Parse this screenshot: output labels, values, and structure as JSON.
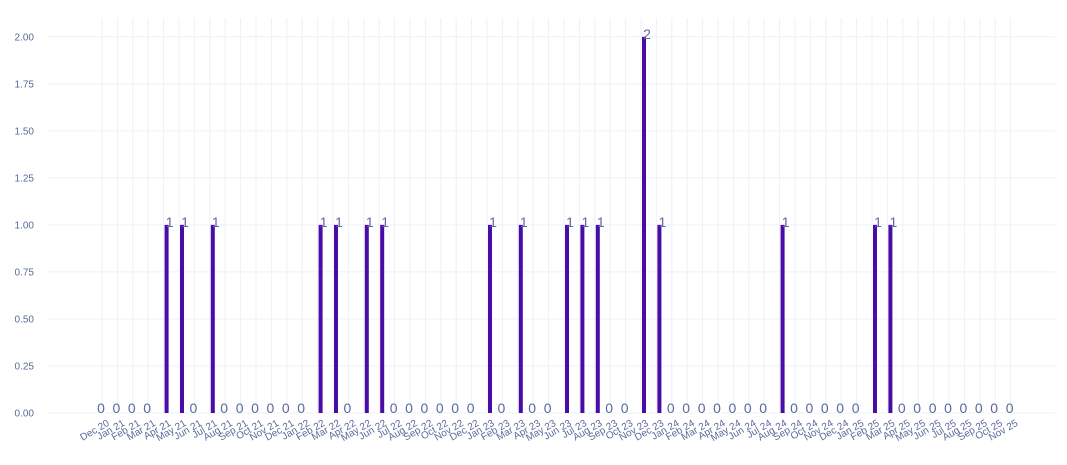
{
  "chart_data": {
    "type": "bar",
    "categories": [
      "Dec 20",
      "Jan 21",
      "Feb 21",
      "Mar 21",
      "Apr 21",
      "May 21",
      "Jun 21",
      "Jul 21",
      "Aug 21",
      "Sep 21",
      "Oct 21",
      "Nov 21",
      "Dec 21",
      "Jan 22",
      "Feb 22",
      "Mar 22",
      "Apr 22",
      "May 22",
      "Jun 22",
      "Jul 22",
      "Aug 22",
      "Sep 22",
      "Oct 22",
      "Nov 22",
      "Dec 22",
      "Jan 23",
      "Feb 23",
      "Mar 23",
      "Apr 23",
      "May 23",
      "Jun 23",
      "Jul 23",
      "Aug 23",
      "Sep 23",
      "Oct 23",
      "Nov 23",
      "Dec 23",
      "Jan 24",
      "Feb 24",
      "Mar 24",
      "Apr 24",
      "May 24",
      "Jun 24",
      "Jul 24",
      "Aug 24",
      "Sep 24",
      "Oct 24",
      "Nov 24",
      "Dec 24",
      "Jan 25",
      "Feb 25",
      "Mar 25",
      "Apr 25",
      "May 25",
      "Jun 25",
      "Jul 25",
      "Aug 25",
      "Sep 25",
      "Oct 25",
      "Nov 25"
    ],
    "values": [
      0,
      0,
      0,
      0,
      1,
      1,
      0,
      1,
      0,
      0,
      0,
      0,
      0,
      0,
      1,
      1,
      0,
      1,
      1,
      0,
      0,
      0,
      0,
      0,
      0,
      1,
      0,
      1,
      0,
      0,
      1,
      1,
      1,
      0,
      0,
      2,
      1,
      0,
      0,
      0,
      0,
      0,
      0,
      0,
      1,
      0,
      0,
      0,
      0,
      0,
      1,
      1,
      0,
      0,
      0,
      0,
      0,
      0,
      0,
      0
    ],
    "y_ticks": [
      "0.00",
      "0.25",
      "0.50",
      "0.75",
      "1.00",
      "1.25",
      "1.50",
      "1.75",
      "2.00"
    ],
    "ylim": [
      0,
      2.1
    ],
    "title": "",
    "xlabel": "",
    "ylabel": "",
    "grid": true,
    "legend": "none",
    "colors": {
      "bar": "#4a0ca8",
      "grid": "#eef0f8",
      "text": "#5a6a9a"
    }
  }
}
